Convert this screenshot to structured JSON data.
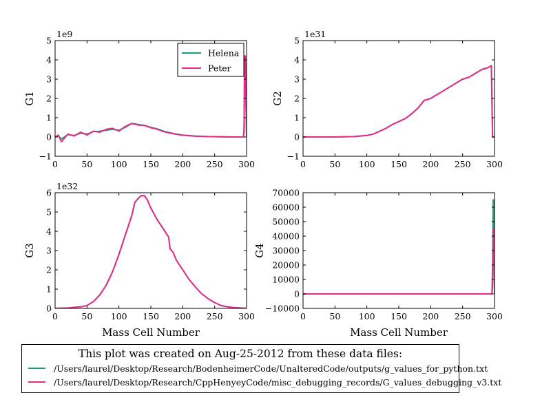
{
  "colors": {
    "helena": "#1b9e77",
    "peter": "#e7298a",
    "axis": "#000000"
  },
  "chart_data": [
    {
      "type": "line",
      "ylabel": "G1",
      "xlabel": "",
      "exponent_label": "1e9",
      "xlim": [
        0,
        300
      ],
      "ylim": [
        -1,
        5
      ],
      "xticks": [
        "0",
        "50",
        "100",
        "150",
        "200",
        "250",
        "300"
      ],
      "yticks": [
        "−1",
        "0",
        "1",
        "2",
        "3",
        "4",
        "5"
      ],
      "legend": {
        "placement": "top-right",
        "entries": [
          "Helena",
          "Peter"
        ]
      },
      "series": [
        {
          "name": "Helena",
          "x": [
            0,
            5,
            10,
            20,
            30,
            40,
            50,
            60,
            70,
            80,
            90,
            100,
            110,
            120,
            130,
            140,
            150,
            160,
            170,
            180,
            190,
            200,
            220,
            240,
            260,
            280,
            295,
            296,
            297,
            298,
            300
          ],
          "y": [
            0.02,
            0.05,
            -0.1,
            0.12,
            0.08,
            0.2,
            0.15,
            0.28,
            0.3,
            0.35,
            0.4,
            0.35,
            0.5,
            0.7,
            0.65,
            0.6,
            0.5,
            0.42,
            0.3,
            0.22,
            0.15,
            0.1,
            0.05,
            0.02,
            0.01,
            0.0,
            0.0,
            0.3,
            4.2,
            4.2,
            0.0
          ]
        },
        {
          "name": "Peter",
          "x": [
            0,
            5,
            10,
            20,
            30,
            40,
            50,
            60,
            70,
            80,
            90,
            100,
            110,
            120,
            130,
            140,
            150,
            160,
            170,
            180,
            190,
            200,
            220,
            240,
            260,
            280,
            295,
            296,
            297,
            298,
            300
          ],
          "y": [
            0.0,
            0.1,
            -0.25,
            0.15,
            0.05,
            0.25,
            0.1,
            0.3,
            0.25,
            0.4,
            0.45,
            0.3,
            0.55,
            0.7,
            0.62,
            0.6,
            0.48,
            0.4,
            0.28,
            0.2,
            0.14,
            0.09,
            0.04,
            0.02,
            0.01,
            0.0,
            0.0,
            0.3,
            4.2,
            4.2,
            0.0
          ]
        }
      ]
    },
    {
      "type": "line",
      "ylabel": "G2",
      "xlabel": "",
      "exponent_label": "1e31",
      "xlim": [
        0,
        300
      ],
      "ylim": [
        -1,
        5
      ],
      "xticks": [
        "0",
        "50",
        "100",
        "150",
        "200",
        "250",
        "300"
      ],
      "yticks": [
        "−1",
        "0",
        "1",
        "2",
        "3",
        "4",
        "5"
      ],
      "series": [
        {
          "name": "Helena",
          "x": [
            0,
            50,
            80,
            100,
            110,
            120,
            130,
            140,
            150,
            160,
            170,
            180,
            190,
            200,
            210,
            220,
            230,
            240,
            250,
            260,
            270,
            280,
            290,
            295,
            297,
            300
          ],
          "y": [
            0.0,
            0.0,
            0.02,
            0.08,
            0.15,
            0.3,
            0.45,
            0.65,
            0.8,
            0.95,
            1.2,
            1.5,
            1.9,
            2.0,
            2.2,
            2.4,
            2.6,
            2.8,
            3.0,
            3.1,
            3.3,
            3.5,
            3.6,
            3.7,
            0.0,
            0.0
          ]
        },
        {
          "name": "Peter",
          "x": [
            0,
            50,
            80,
            100,
            110,
            120,
            130,
            140,
            150,
            160,
            170,
            180,
            190,
            200,
            210,
            220,
            230,
            240,
            250,
            260,
            270,
            280,
            290,
            295,
            297,
            300
          ],
          "y": [
            0.0,
            0.0,
            0.02,
            0.08,
            0.15,
            0.3,
            0.45,
            0.65,
            0.8,
            0.95,
            1.2,
            1.5,
            1.9,
            2.0,
            2.2,
            2.4,
            2.6,
            2.8,
            3.0,
            3.1,
            3.3,
            3.5,
            3.6,
            3.7,
            0.0,
            0.0
          ]
        }
      ]
    },
    {
      "type": "line",
      "ylabel": "G3",
      "xlabel": "Mass Cell Number",
      "exponent_label": "1e32",
      "xlim": [
        0,
        300
      ],
      "ylim": [
        0,
        6
      ],
      "xticks": [
        "0",
        "50",
        "100",
        "150",
        "200",
        "250",
        "300"
      ],
      "yticks": [
        "0",
        "1",
        "2",
        "3",
        "4",
        "5",
        "6"
      ],
      "series": [
        {
          "name": "Helena",
          "x": [
            0,
            20,
            40,
            50,
            60,
            70,
            80,
            90,
            100,
            110,
            120,
            125,
            130,
            135,
            140,
            145,
            150,
            160,
            170,
            178,
            180,
            185,
            190,
            200,
            210,
            220,
            230,
            240,
            250,
            260,
            270,
            280,
            290,
            300
          ],
          "y": [
            0.0,
            0.02,
            0.08,
            0.15,
            0.35,
            0.7,
            1.2,
            1.9,
            2.8,
            3.8,
            4.8,
            5.5,
            5.7,
            5.85,
            5.85,
            5.6,
            5.2,
            4.6,
            4.1,
            3.7,
            3.1,
            2.9,
            2.5,
            2.0,
            1.5,
            1.1,
            0.75,
            0.5,
            0.3,
            0.15,
            0.08,
            0.04,
            0.02,
            0.0
          ]
        },
        {
          "name": "Peter",
          "x": [
            0,
            20,
            40,
            50,
            60,
            70,
            80,
            90,
            100,
            110,
            120,
            125,
            130,
            135,
            140,
            145,
            150,
            160,
            170,
            178,
            180,
            185,
            190,
            200,
            210,
            220,
            230,
            240,
            250,
            260,
            270,
            280,
            290,
            300
          ],
          "y": [
            0.0,
            0.02,
            0.08,
            0.15,
            0.35,
            0.7,
            1.2,
            1.9,
            2.8,
            3.8,
            4.8,
            5.5,
            5.7,
            5.85,
            5.85,
            5.6,
            5.2,
            4.6,
            4.1,
            3.7,
            3.1,
            2.9,
            2.5,
            2.0,
            1.5,
            1.1,
            0.75,
            0.5,
            0.3,
            0.15,
            0.08,
            0.04,
            0.02,
            0.0
          ]
        }
      ]
    },
    {
      "type": "line",
      "ylabel": "G4",
      "xlabel": "Mass Cell Number",
      "exponent_label": "",
      "xlim": [
        0,
        300
      ],
      "ylim": [
        -10000,
        70000
      ],
      "xticks": [
        "0",
        "50",
        "100",
        "150",
        "200",
        "250",
        "300"
      ],
      "yticks": [
        "−10000",
        "0",
        "10000",
        "20000",
        "30000",
        "40000",
        "50000",
        "60000",
        "70000"
      ],
      "series": [
        {
          "name": "Helena",
          "x": [
            0,
            50,
            100,
            150,
            200,
            250,
            295,
            296,
            297,
            298,
            299,
            300
          ],
          "y": [
            0,
            0,
            0,
            0,
            0,
            0,
            0,
            500,
            20000,
            65000,
            65000,
            0
          ]
        },
        {
          "name": "Peter",
          "x": [
            0,
            50,
            100,
            150,
            200,
            250,
            295,
            296,
            297,
            298,
            299,
            300
          ],
          "y": [
            0,
            0,
            0,
            0,
            0,
            0,
            0,
            200,
            5000,
            45000,
            45000,
            0
          ]
        }
      ]
    }
  ],
  "footer": {
    "title": "This plot was created on Aug-25-2012 from these data files:",
    "files": [
      "/Users/laurel/Desktop/Research/BodenheimerCode/UnalteredCode/outputs/g_values_for_python.txt",
      "/Users/laurel/Desktop/Research/CppHenyeyCode/misc_debugging_records/G_values_debugging_v3.txt"
    ]
  }
}
